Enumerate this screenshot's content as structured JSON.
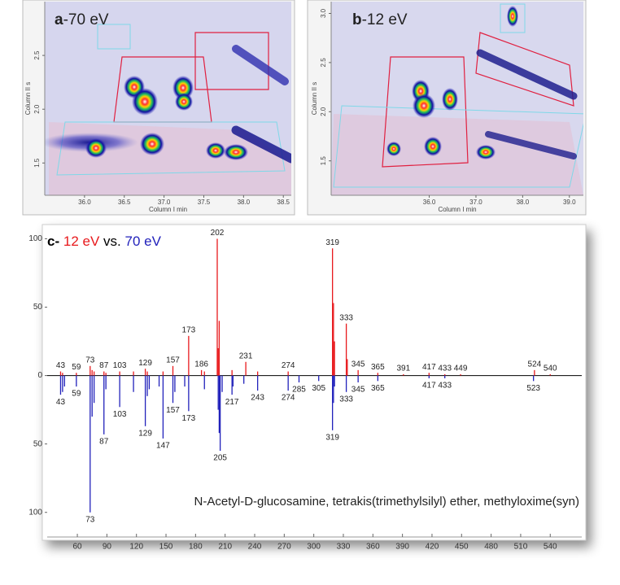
{
  "chart_data": [
    {
      "type": "heatmap",
      "panel_label": "a",
      "title": "-70 eV",
      "xlabel": "Column I min",
      "ylabel": "Column II s",
      "xlim": [
        35.5,
        38.6
      ],
      "xticks": [
        {
          "value": 36,
          "label": "36.0"
        },
        {
          "value": 36.5,
          "label": "36.5"
        },
        {
          "value": 37,
          "label": "37.0"
        },
        {
          "value": 37.5,
          "label": "37.5"
        },
        {
          "value": 38,
          "label": "38.0"
        },
        {
          "value": 38.5,
          "label": "38.5"
        }
      ],
      "ylim": [
        1.2,
        3.0
      ],
      "yticks": [
        1.5,
        {
          "value": 2,
          "label": "2.0"
        },
        2.5
      ]
    },
    {
      "type": "heatmap",
      "panel_label": "b",
      "title": "-12 eV",
      "xlabel": "Column I min",
      "ylabel": "Column II s",
      "xlim": [
        33.9,
        39.3
      ],
      "xticks": [
        {
          "value": 36,
          "label": "36.0"
        },
        {
          "value": 37,
          "label": "37.0"
        },
        {
          "value": 38,
          "label": "38.0"
        },
        {
          "value": 39,
          "label": "39.0"
        }
      ],
      "ylim": [
        1.15,
        3.12
      ],
      "yticks": [
        1.5,
        {
          "value": 2,
          "label": "2.0"
        },
        2.5,
        {
          "value": 3,
          "label": "3.0"
        }
      ]
    },
    {
      "type": "mirror-spectrum",
      "panel_label": "c-",
      "title_joiner": "vs.",
      "annotation": "N-Acetyl-D-glucosamine, tetrakis(trimethylsilyl) ether, methyloxime(syn)",
      "xlim": [
        29.4,
        572
      ],
      "xticks": [
        60,
        90,
        120,
        150,
        180,
        210,
        240,
        270,
        300,
        330,
        360,
        390,
        420,
        450,
        480,
        510,
        540
      ],
      "ylim": [
        -118,
        108
      ],
      "yticks": [
        100,
        50,
        0,
        {
          "value": -50,
          "label": "50"
        },
        {
          "value": -100,
          "label": "100"
        }
      ],
      "series": [
        {
          "name": "12 eV",
          "color": "#e8191c",
          "x": [
            43,
            45,
            59,
            73,
            75,
            77,
            87,
            89,
            103,
            117,
            129,
            131,
            147,
            157,
            173,
            186,
            189,
            202,
            203,
            204,
            217,
            231,
            243,
            274,
            319,
            320,
            321,
            333,
            334,
            345,
            365,
            391,
            417,
            433,
            449,
            524,
            540
          ],
          "values": [
            3,
            2,
            2,
            7,
            4,
            3,
            3,
            2,
            3,
            3,
            5,
            3,
            3,
            7,
            29,
            4,
            3,
            100,
            20,
            40,
            4,
            10,
            3,
            3,
            93,
            53,
            25,
            38,
            12,
            4,
            2,
            1,
            2,
            1,
            1,
            4,
            1
          ],
          "labels": [
            43,
            null,
            59,
            73,
            null,
            null,
            87,
            null,
            103,
            null,
            129,
            null,
            null,
            157,
            173,
            186,
            null,
            202,
            null,
            null,
            null,
            231,
            null,
            274,
            319,
            null,
            null,
            333,
            null,
            345,
            365,
            391,
            417,
            433,
            449,
            524,
            540
          ]
        },
        {
          "name": "70 eV",
          "color": "#2222bb",
          "x": [
            43,
            45,
            47,
            59,
            73,
            75,
            77,
            87,
            89,
            103,
            117,
            129,
            131,
            133,
            143,
            147,
            157,
            159,
            169,
            173,
            189,
            203,
            204,
            205,
            207,
            217,
            218,
            229,
            243,
            274,
            285,
            305,
            319,
            320,
            321,
            333,
            345,
            365,
            417,
            433,
            523
          ],
          "values": [
            -14,
            -12,
            -8,
            -8,
            -100,
            -30,
            -20,
            -43,
            -10,
            -23,
            -12,
            -37,
            -15,
            -10,
            -8,
            -46,
            -20,
            -12,
            -8,
            -26,
            -10,
            -25,
            -42,
            -55,
            -12,
            -14,
            -8,
            -6,
            -11,
            -11,
            -5,
            -4,
            -40,
            -20,
            -8,
            -12,
            -5,
            -4,
            -2,
            -2,
            -4
          ],
          "labels": [
            43,
            null,
            null,
            59,
            73,
            null,
            null,
            87,
            null,
            103,
            null,
            129,
            null,
            null,
            null,
            147,
            157,
            null,
            null,
            173,
            null,
            null,
            null,
            205,
            null,
            217,
            null,
            null,
            243,
            274,
            285,
            305,
            319,
            null,
            null,
            333,
            345,
            365,
            417,
            433,
            523
          ]
        }
      ]
    }
  ]
}
